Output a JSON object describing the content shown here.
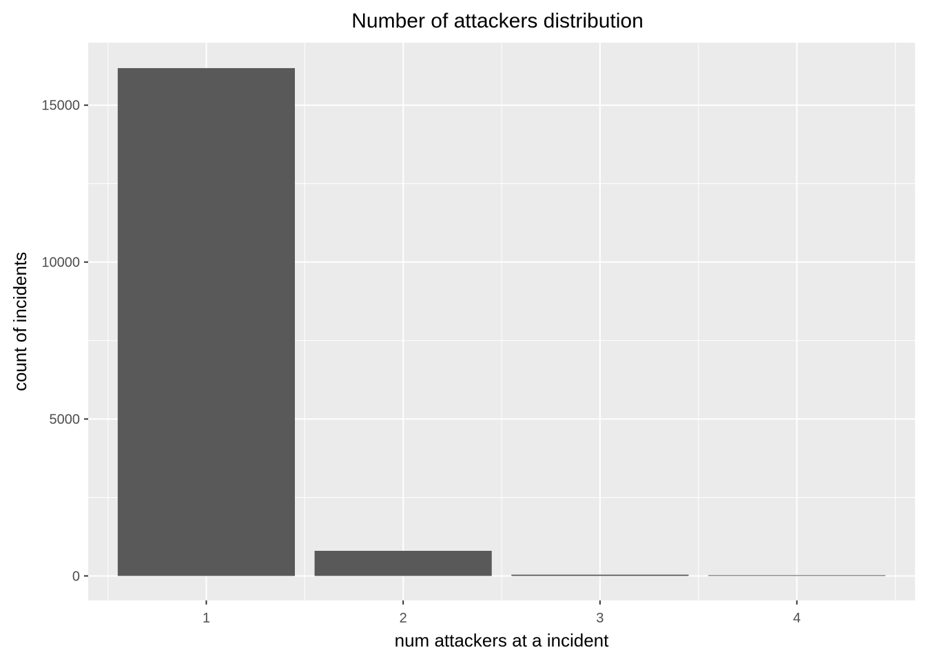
{
  "chart_data": {
    "type": "bar",
    "title": "Number of attackers distribution",
    "xlabel": "num attackers at a incident",
    "ylabel": "count of incidents",
    "categories": [
      "1",
      "2",
      "3",
      "4"
    ],
    "values": [
      16180,
      800,
      40,
      15
    ],
    "ylim": [
      -780,
      16990
    ],
    "yticks": [
      0,
      5000,
      10000,
      15000
    ],
    "grid": true,
    "legend": "none",
    "colors": {
      "panel": "#ebebeb",
      "grid_major": "#ffffff",
      "bar": "#595959",
      "tick": "#333333"
    }
  }
}
